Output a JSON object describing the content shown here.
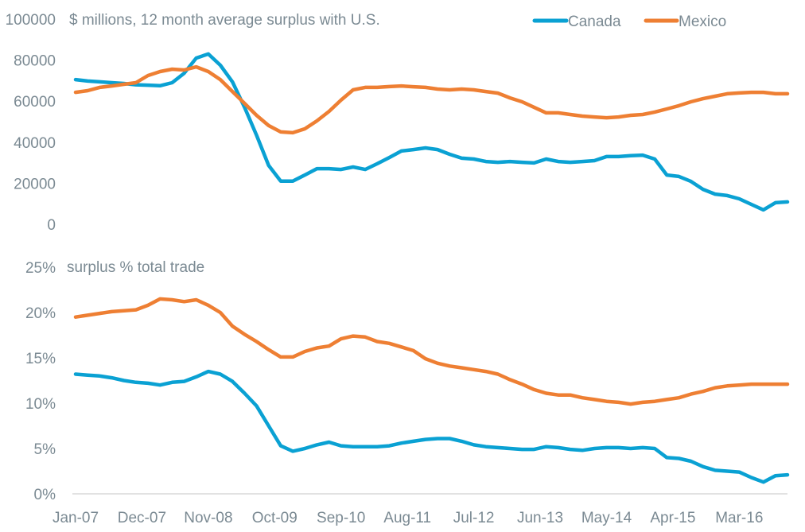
{
  "chart_data": [
    {
      "id": "top",
      "type": "line",
      "title": "$ millions, 12 month average surplus with U.S.",
      "xlabel": "",
      "ylabel": "",
      "ylim": [
        0,
        100000
      ],
      "yticks": [
        0,
        20000,
        40000,
        60000,
        80000,
        100000
      ],
      "ytick_labels": [
        "0",
        "20000",
        "40000",
        "60000",
        "80000",
        "100000"
      ],
      "grid": false,
      "legend": {
        "placement": "top-right",
        "entries": [
          "Canada",
          "Mexico"
        ]
      },
      "x_start": "Jan-07",
      "x_step_months": 2,
      "series": [
        {
          "name": "Canada",
          "color": "#0aa1d3",
          "values": [
            70500,
            69800,
            69400,
            69000,
            68600,
            68000,
            67800,
            67500,
            69000,
            73600,
            81000,
            83000,
            77500,
            69400,
            57000,
            43400,
            28700,
            21000,
            21000,
            24000,
            27100,
            27100,
            26700,
            27900,
            26700,
            29500,
            32500,
            35700,
            36400,
            37200,
            36400,
            34100,
            32200,
            31800,
            30600,
            30200,
            30600,
            30200,
            29900,
            31800,
            30600,
            30200,
            30600,
            31000,
            33000,
            33000,
            33400,
            33700,
            31800,
            24000,
            23300,
            20900,
            17000,
            14700,
            14000,
            12400,
            9700,
            7000,
            10500,
            10900
          ]
        },
        {
          "name": "Mexico",
          "color": "#ee7f33",
          "values": [
            64300,
            65100,
            66700,
            67400,
            68200,
            69000,
            72500,
            74400,
            75600,
            75200,
            76700,
            74400,
            70500,
            64700,
            58900,
            53100,
            48100,
            45000,
            44600,
            46500,
            50400,
            55000,
            60500,
            65500,
            66700,
            66700,
            67100,
            67400,
            67000,
            66700,
            65900,
            65500,
            65900,
            65500,
            64700,
            63900,
            61600,
            59700,
            57000,
            54300,
            54300,
            53500,
            52700,
            52300,
            51900,
            52300,
            53100,
            53500,
            54700,
            56200,
            57800,
            59700,
            61200,
            62400,
            63600,
            64000,
            64300,
            64300,
            63600,
            63600
          ]
        }
      ]
    },
    {
      "id": "bottom",
      "type": "line",
      "title": "surplus % total trade",
      "xlabel": "",
      "ylabel": "",
      "ylim": [
        0,
        25
      ],
      "yticks": [
        0,
        5,
        10,
        15,
        20,
        25
      ],
      "ytick_labels": [
        "0%",
        "5%",
        "10%",
        "15%",
        "20%",
        "25%"
      ],
      "grid": false,
      "x_start": "Jan-07",
      "x_step_months": 2,
      "xtick_labels": [
        "Jan-07",
        "Dec-07",
        "Nov-08",
        "Oct-09",
        "Sep-10",
        "Aug-11",
        "Jul-12",
        "Jun-13",
        "May-14",
        "Apr-15",
        "Mar-16"
      ],
      "series": [
        {
          "name": "Canada",
          "color": "#0aa1d3",
          "values": [
            13.2,
            13.1,
            13.0,
            12.8,
            12.5,
            12.3,
            12.2,
            12.0,
            12.3,
            12.4,
            12.9,
            13.5,
            13.2,
            12.4,
            11.1,
            9.7,
            7.5,
            5.3,
            4.7,
            5.0,
            5.4,
            5.7,
            5.3,
            5.2,
            5.2,
            5.2,
            5.3,
            5.6,
            5.8,
            6.0,
            6.1,
            6.1,
            5.8,
            5.4,
            5.2,
            5.1,
            5.0,
            4.9,
            4.9,
            5.2,
            5.1,
            4.9,
            4.8,
            5.0,
            5.1,
            5.1,
            5.0,
            5.1,
            5.0,
            4.0,
            3.9,
            3.6,
            3.0,
            2.6,
            2.5,
            2.4,
            1.8,
            1.3,
            2.0,
            2.1
          ]
        },
        {
          "name": "Mexico",
          "color": "#ee7f33",
          "values": [
            19.5,
            19.7,
            19.9,
            20.1,
            20.2,
            20.3,
            20.8,
            21.5,
            21.4,
            21.2,
            21.4,
            20.8,
            20.0,
            18.5,
            17.6,
            16.8,
            15.9,
            15.1,
            15.1,
            15.7,
            16.1,
            16.3,
            17.1,
            17.4,
            17.3,
            16.8,
            16.6,
            16.2,
            15.8,
            14.9,
            14.4,
            14.1,
            13.9,
            13.7,
            13.5,
            13.2,
            12.6,
            12.1,
            11.5,
            11.1,
            10.9,
            10.9,
            10.6,
            10.4,
            10.2,
            10.1,
            9.9,
            10.1,
            10.2,
            10.4,
            10.6,
            11.0,
            11.3,
            11.7,
            11.9,
            12.0,
            12.1,
            12.1,
            12.1,
            12.1
          ]
        }
      ]
    }
  ]
}
